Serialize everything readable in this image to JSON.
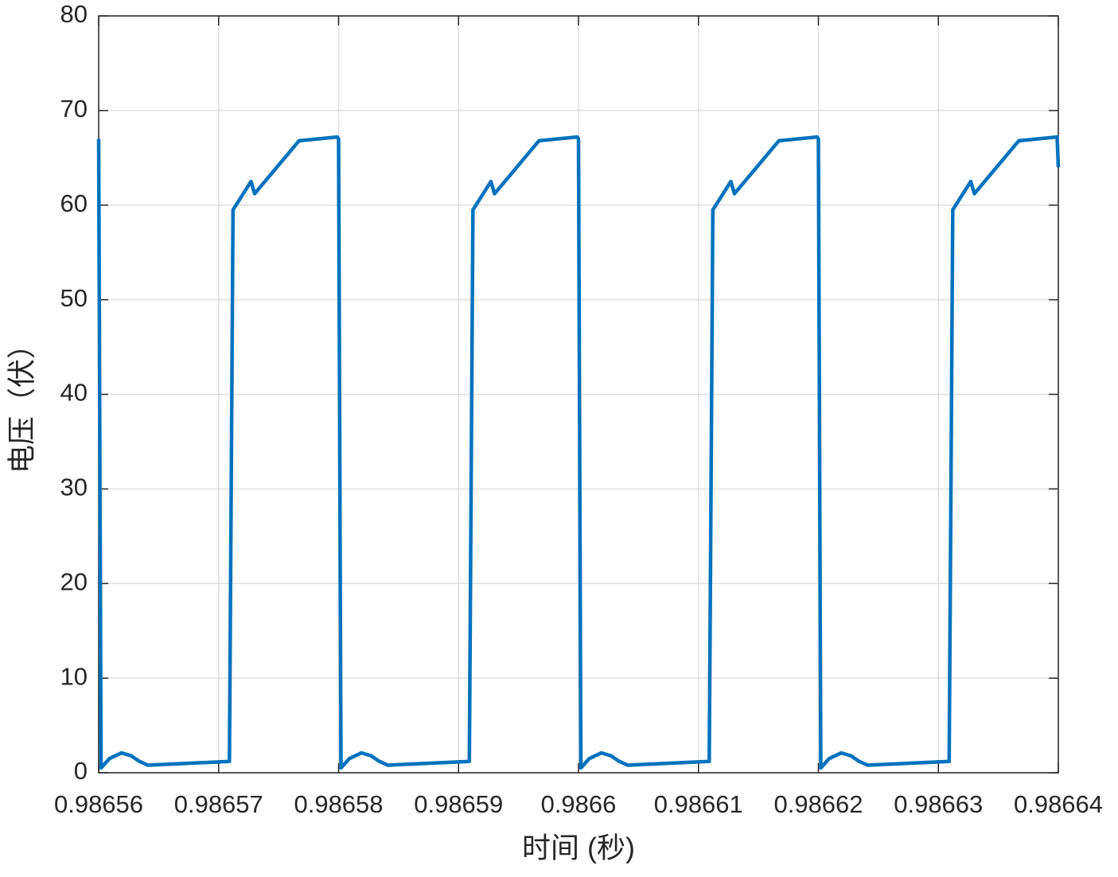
{
  "chart_data": {
    "type": "line",
    "x_label": "时间 (秒)",
    "y_label": "电压（伏）",
    "x": [
      0.98656,
      0.9865602,
      0.9865609,
      0.9865619,
      0.9865627,
      0.9865634,
      0.9865641,
      0.9865709,
      0.9865712,
      0.9865727,
      0.986573,
      0.9865767,
      0.9865799,
      0.98658,
      0.9865802,
      0.9865809,
      0.9865819,
      0.9865827,
      0.9865834,
      0.9865841,
      0.9865909,
      0.9865912,
      0.9865927,
      0.986593,
      0.9865967,
      0.9865999,
      0.9866,
      0.9866002,
      0.9866009,
      0.9866019,
      0.9866027,
      0.9866034,
      0.9866041,
      0.9866109,
      0.9866112,
      0.9866127,
      0.986613,
      0.9866167,
      0.9866199,
      0.98662,
      0.9866202,
      0.9866209,
      0.9866219,
      0.9866227,
      0.9866234,
      0.9866241,
      0.9866309,
      0.9866312,
      0.9866327,
      0.986633,
      0.9866367,
      0.9866399,
      0.98664
    ],
    "series": [
      {
        "color": "#0072bd",
        "values": [
          67,
          0.5,
          1.5,
          2.1,
          1.8,
          1.2,
          0.8,
          1.2,
          59.5,
          62.5,
          61.2,
          66.8,
          67.2,
          67,
          0.5,
          1.5,
          2.1,
          1.8,
          1.2,
          0.8,
          1.2,
          59.5,
          62.5,
          61.2,
          66.8,
          67.2,
          67,
          0.5,
          1.5,
          2.1,
          1.8,
          1.2,
          0.8,
          1.2,
          59.5,
          62.5,
          61.2,
          66.8,
          67.2,
          67,
          0.5,
          1.5,
          2.1,
          1.8,
          1.2,
          0.8,
          1.2,
          59.5,
          62.5,
          61.2,
          66.8,
          67.2,
          64
        ]
      }
    ],
    "xlim": [
      0.98656,
      0.98664
    ],
    "xticks": [
      0.98656,
      0.98657,
      0.98658,
      0.98659,
      0.9866,
      0.98661,
      0.98662,
      0.98663,
      0.98664
    ],
    "ylim": [
      0,
      80
    ],
    "yticks": [
      0,
      10,
      20,
      30,
      40,
      50,
      60,
      70,
      80
    ],
    "grid": true
  }
}
